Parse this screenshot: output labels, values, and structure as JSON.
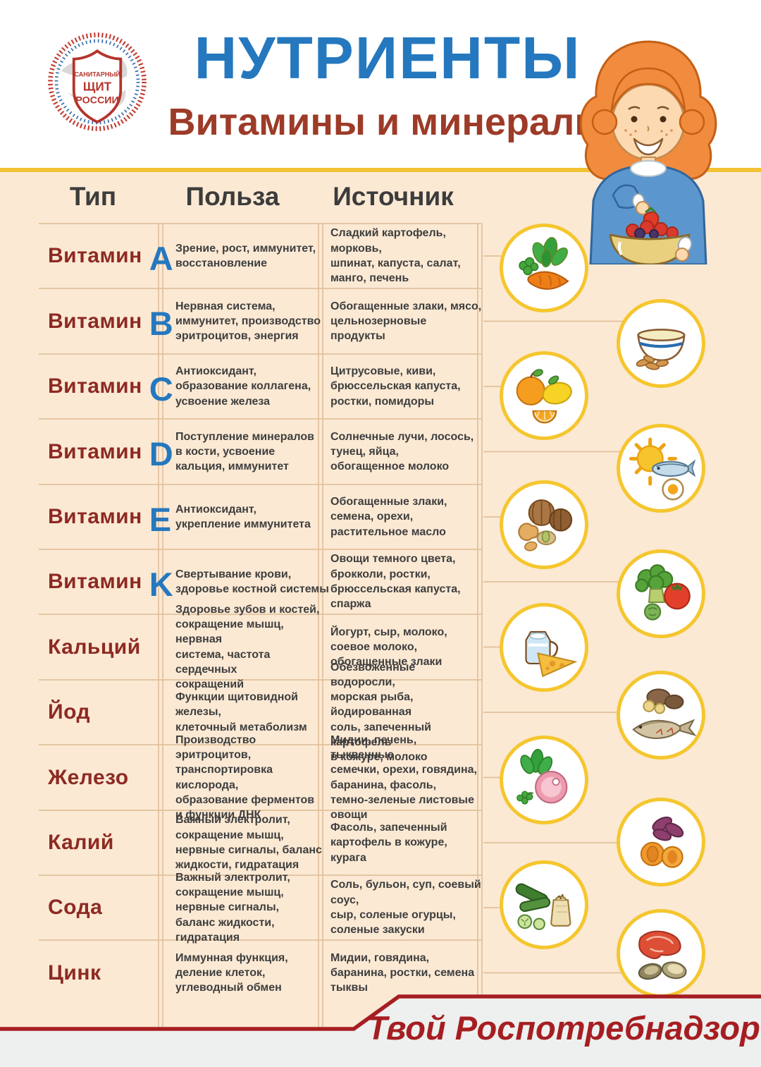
{
  "header": {
    "logo": {
      "line1": "САНИТАРНЫЙ",
      "line2": "ЩИТ",
      "line3": "РОССИИ"
    },
    "title": "НУТРИЕНТЫ",
    "subtitle": "Витамины и минералы"
  },
  "table": {
    "columns": [
      "Тип",
      "Польза",
      "Источник"
    ],
    "rows": [
      {
        "label": "Витамин",
        "letter": "A",
        "benefit": "Зрение, рост, иммунитет,\nвосстановление",
        "source": "Сладкий картофель, морковь,\nшпинат, капуста, салат,\nманго, печень",
        "icon": "spinach-carrot-icon"
      },
      {
        "label": "Витамин",
        "letter": "B",
        "benefit": "Нервная система,\nиммунитет, производство\nэритроцитов, энергия",
        "source": "Обогащенные злаки, мясо,\nцельнозерновые продукты",
        "icon": "bowl-grains-icon"
      },
      {
        "label": "Витамин",
        "letter": "C",
        "benefit": "Антиоксидант,\nобразование коллагена,\nусвоение железа",
        "source": "Цитрусовые, киви,\nбрюссельская капуста,\nростки, помидоры",
        "icon": "citrus-icon"
      },
      {
        "label": "Витамин",
        "letter": "D",
        "benefit": "Поступление минералов\nв кости, усвоение\nкальция, иммунитет",
        "source": "Солнечные лучи, лосось,\nтунец, яйца,\nобогащенное молоко",
        "icon": "sun-fish-egg-icon"
      },
      {
        "label": "Витамин",
        "letter": "E",
        "benefit": "Антиоксидант,\nукрепление иммунитета",
        "source": "Обогащенные злаки,\nсемена, орехи,\nрастительное масло",
        "icon": "nuts-icon"
      },
      {
        "label": "Витамин",
        "letter": "K",
        "benefit": "Свертывание крови,\nздоровье костной системы",
        "source": "Овощи темного цвета,\nброкколи, ростки,\nбрюссельская капуста,\nспаржа",
        "icon": "broccoli-tomato-icon"
      },
      {
        "label": "Кальций",
        "letter": "",
        "benefit": "Здоровье зубов и костей,\nсокращение мышц, нервная\nсистема, частота сердечных\nсокращений",
        "source": "Йогурт, сыр, молоко,\nсоевое молоко,\nобогащенные злаки",
        "icon": "milk-cheese-icon"
      },
      {
        "label": "Йод",
        "letter": "",
        "benefit": "Функции щитовидной железы,\nклеточный метаболизм",
        "source": "Обезвоженные водоросли,\nморская рыба, йодированная\nсоль, запеченный картофель\nв кожуре, молоко",
        "icon": "potato-fish-icon"
      },
      {
        "label": "Железо",
        "letter": "",
        "benefit": "Производство эритроцитов,\nтранспортировка кислорода,\nобразование ферментов\nи функции ДНК",
        "source": "Мидии, печень, тыквенные\nсемечки, орехи, говядина,\nбаранина, фасоль,\nтемно-зеленые листовые овощи",
        "icon": "greens-meat-icon"
      },
      {
        "label": "Калий",
        "letter": "",
        "benefit": "Важный электролит,\nсокращение мышц,\nнервные сигналы, баланс\nжидкости, гидратация",
        "source": "Фасоль, запеченный\nкартофель в кожуре, курага",
        "icon": "beans-apricots-icon"
      },
      {
        "label": "Сода",
        "letter": "",
        "benefit": "Важный электролит,\nсокращение мышц,\nнервные сигналы,\nбаланс жидкости, гидратация",
        "source": "Соль, бульон, суп, соевый соус,\nсыр, соленые огурцы,\nсоленые закуски",
        "icon": "cucumber-salt-icon"
      },
      {
        "label": "Цинк",
        "letter": "",
        "benefit": "Иммунная функция,\nделение клеток,\nуглеводный обмен",
        "source": "Мидии, говядина,\nбаранина, ростки, семена\nтыквы",
        "icon": "meat-mussels-icon"
      }
    ]
  },
  "footer": {
    "text": "Твой Роспотребнадзор"
  },
  "colors": {
    "title_blue": "#2578be",
    "label_red": "#8d2a22",
    "subtitle_red": "#9d3b28",
    "footer_red": "#a61e22",
    "yellow_accent": "#f2c233",
    "circle_yellow": "#f5c62e",
    "cream_background": "#fbe9d4",
    "grid_tan": "#e2c09b",
    "footer_gray": "#edf0ee"
  }
}
